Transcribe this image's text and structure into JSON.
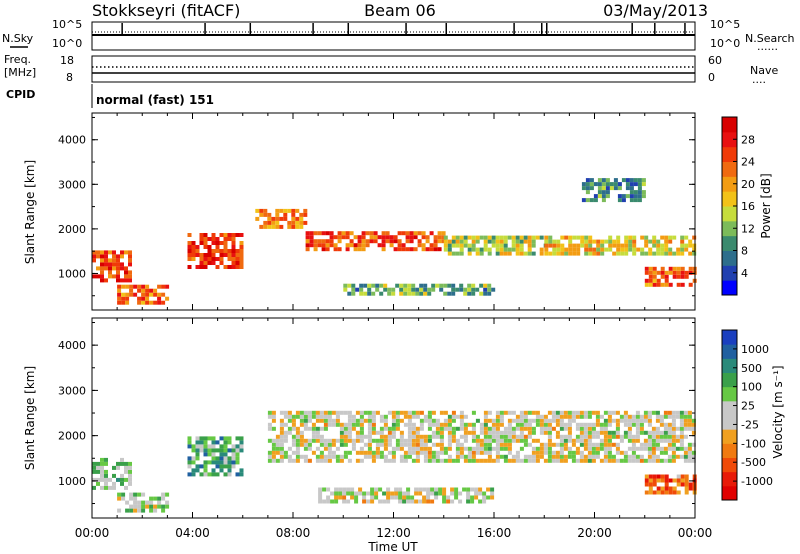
{
  "header": {
    "station": "Stokkseyri (fitACF)",
    "beam": "Beam 06",
    "date": "03/May/2013"
  },
  "side_labels": {
    "nsky": "N.Sky",
    "freq_line1": "Freq.",
    "freq_line2": "[MHz]",
    "cpid": "CPID",
    "nsearch": "N.Search",
    "nave": "Nave",
    "dotted": "......",
    "dotted_short": "...."
  },
  "cpid_text": "normal (fast) 151",
  "noise_axis": {
    "top": "10^5",
    "bottom": "10^0"
  },
  "freq_axis": {
    "left_top": "18",
    "left_bottom": "8",
    "right_top": "60",
    "right_bottom": "0"
  },
  "colors": {
    "power_scale": [
      "#0000ff",
      "#2040b0",
      "#2d6e8c",
      "#3a8a6e",
      "#7cbb5a",
      "#c6dc3c",
      "#f2c218",
      "#f39c12",
      "#f06a10",
      "#f03a08",
      "#e81010",
      "#d80000"
    ],
    "velocity_scale": [
      "#1a3fbf",
      "#2060a0",
      "#2a8a7a",
      "#3aa04a",
      "#66c844",
      "#c8c8c8",
      "#c8c8c8",
      "#f0a020",
      "#f07a10",
      "#f04a08",
      "#e81a08",
      "#e00000"
    ],
    "ground_scatter": "#c0c0bc"
  },
  "chart_data": [
    {
      "type": "heatmap",
      "panel": "power",
      "ylabel": "Slant Range [km]",
      "xlabel": "Time UT",
      "x_ticks": [
        "00:00",
        "04:00",
        "08:00",
        "12:00",
        "16:00",
        "20:00",
        "00:00"
      ],
      "y_ticks": [
        1000,
        2000,
        3000,
        4000
      ],
      "ylim": [
        180,
        4600
      ],
      "xlim_hours": [
        0,
        24
      ],
      "colorbar": {
        "label": "Power [dB]",
        "ticks": [
          "4",
          "8",
          "12",
          "16",
          "20",
          "24",
          "28"
        ],
        "range": [
          0,
          30
        ]
      },
      "bands": [
        {
          "t0": 0.0,
          "t1": 1.5,
          "r0": 800,
          "r1": 1500,
          "v": 24
        },
        {
          "t0": 1.0,
          "t1": 3.0,
          "r0": 300,
          "r1": 700,
          "v": 22
        },
        {
          "t0": 3.8,
          "t1": 6.0,
          "r0": 1100,
          "r1": 1900,
          "v": 25
        },
        {
          "t0": 6.5,
          "t1": 8.5,
          "r0": 2000,
          "r1": 2400,
          "v": 20
        },
        {
          "t0": 8.5,
          "t1": 14.0,
          "r0": 1500,
          "r1": 1900,
          "v": 23
        },
        {
          "t0": 14.0,
          "t1": 18.0,
          "r0": 1400,
          "r1": 1800,
          "v": 14
        },
        {
          "t0": 18.0,
          "t1": 24.0,
          "r0": 1400,
          "r1": 1800,
          "v": 16
        },
        {
          "t0": 22.0,
          "t1": 24.0,
          "r0": 700,
          "r1": 1100,
          "v": 22
        },
        {
          "t0": 19.5,
          "t1": 22.0,
          "r0": 2600,
          "r1": 3100,
          "v": 8
        },
        {
          "t0": 10.0,
          "t1": 16.0,
          "r0": 500,
          "r1": 700,
          "v": 10
        }
      ]
    },
    {
      "type": "heatmap",
      "panel": "velocity",
      "ylabel": "Slant Range [km]",
      "xlabel": "Time UT",
      "x_ticks": [
        "00:00",
        "04:00",
        "08:00",
        "12:00",
        "16:00",
        "20:00",
        "00:00"
      ],
      "y_ticks": [
        1000,
        2000,
        3000,
        4000
      ],
      "ylim": [
        180,
        4600
      ],
      "xlim_hours": [
        0,
        24
      ],
      "colorbar": {
        "label": "Velocity [m s⁻¹]",
        "ticks": [
          "1000",
          "500",
          "100",
          "25",
          "-25",
          "-100",
          "-500",
          "-1000"
        ]
      },
      "bands": [
        {
          "t0": 0.0,
          "t1": 1.5,
          "r0": 800,
          "r1": 1500,
          "v": 200
        },
        {
          "t0": 1.0,
          "t1": 3.0,
          "r0": 300,
          "r1": 700,
          "v": 150
        },
        {
          "t0": 3.8,
          "t1": 6.0,
          "r0": 1100,
          "r1": 1900,
          "v": 400
        },
        {
          "t0": 7.0,
          "t1": 24.0,
          "r0": 1400,
          "r1": 2500,
          "v": 0
        },
        {
          "t0": 22.0,
          "t1": 24.0,
          "r0": 700,
          "r1": 1100,
          "v": -500
        },
        {
          "t0": 9.0,
          "t1": 16.0,
          "r0": 500,
          "r1": 800,
          "v": 0
        }
      ]
    }
  ]
}
